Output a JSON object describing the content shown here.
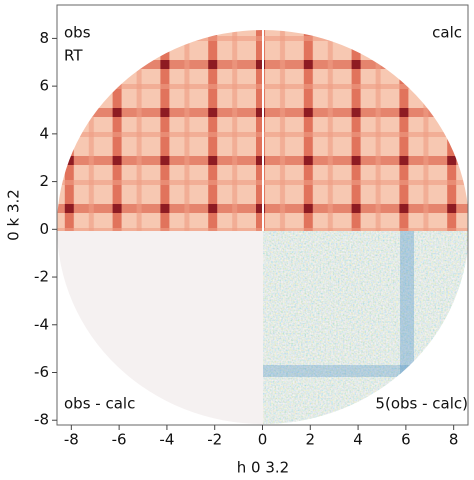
{
  "chart_data": {
    "type": "heatmap",
    "x_label": "h 0 3.2",
    "y_label": "0 k 3.2",
    "xlim": [
      -8.6,
      8.6
    ],
    "ylim": [
      -8.2,
      9.4
    ],
    "xticks": [
      -8,
      -6,
      -4,
      -2,
      0,
      2,
      4,
      6,
      8
    ],
    "yticks": [
      -8,
      -6,
      -4,
      -2,
      0,
      2,
      4,
      6,
      8
    ],
    "annotations": {
      "top_left": "obs",
      "top_left_2": "RT",
      "top_right": "calc",
      "bottom_left": "obs - calc",
      "bottom_right": "5(obs - calc)"
    }
  }
}
